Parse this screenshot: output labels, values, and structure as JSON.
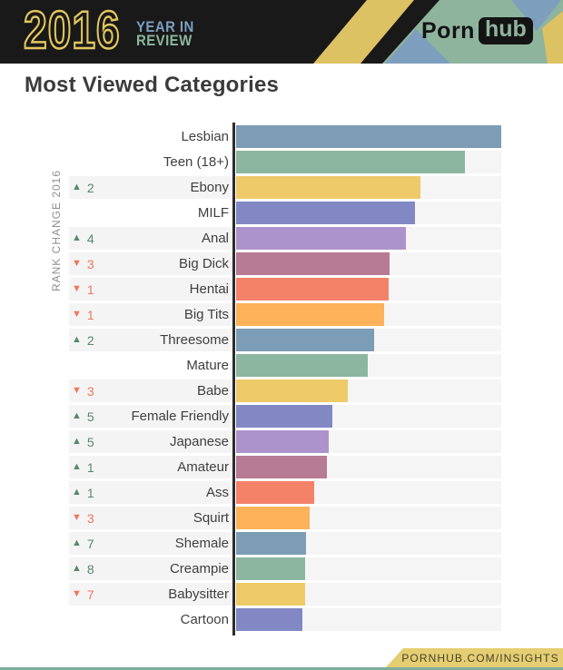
{
  "header": {
    "year": "2016",
    "title_line1": "YEAR IN",
    "title_line2": "REVIEW",
    "brand": {
      "part1": "Porn",
      "part2": "hub"
    },
    "colors": {
      "gold": "#ddc264",
      "blue": "#7d9fbd",
      "green": "#8fb49e",
      "black": "#191919"
    }
  },
  "page_title": "Most Viewed Categories",
  "footer": {
    "link_text": "PORNHUB.COM/INSIGHTS",
    "ribbon_color": "#e5ce71",
    "strip_color": "#7fae9c"
  },
  "chart_data": {
    "type": "bar",
    "orientation": "horizontal",
    "title": "Most Viewed Categories",
    "axis_label": "RANK CHANGE 2016",
    "legend": "none",
    "grid": false,
    "value_axis_labeled": false,
    "note": "Bar lengths are relative (no numeric axis shown); values are percent of longest bar. rank_change null = no change shown.",
    "categories": [
      "Lesbian",
      "Teen (18+)",
      "Ebony",
      "MILF",
      "Anal",
      "Big Dick",
      "Hentai",
      "Big Tits",
      "Threesome",
      "Mature",
      "Babe",
      "Female Friendly",
      "Japanese",
      "Amateur",
      "Ass",
      "Squirt",
      "Shemale",
      "Creampie",
      "Babysitter",
      "Cartoon"
    ],
    "values_pct_of_max": [
      100,
      86.3,
      69.5,
      67.5,
      64.0,
      57.9,
      57.5,
      55.8,
      52.1,
      49.7,
      42.1,
      36.3,
      34.9,
      34.2,
      29.5,
      27.7,
      26.4,
      26.0,
      26.0,
      25.0
    ],
    "rank_change": [
      null,
      null,
      2,
      null,
      4,
      -3,
      -1,
      -1,
      2,
      null,
      -3,
      5,
      5,
      1,
      1,
      -3,
      7,
      8,
      -7,
      null
    ],
    "bar_colors": [
      "#7d9cb5",
      "#8cb6a0",
      "#eeca68",
      "#8288c4",
      "#ad93cc",
      "#b77b94",
      "#f48269",
      "#fdb159",
      "#7d9cb5",
      "#8cb6a0",
      "#eeca68",
      "#8288c4",
      "#ad93cc",
      "#b77b94",
      "#f48269",
      "#fdb159",
      "#7d9cb5",
      "#8cb6a0",
      "#eeca68",
      "#8288c4"
    ],
    "up_color": "#55896b",
    "down_color": "#f0765c",
    "up_arrow": "▲",
    "down_arrow": "▼"
  }
}
